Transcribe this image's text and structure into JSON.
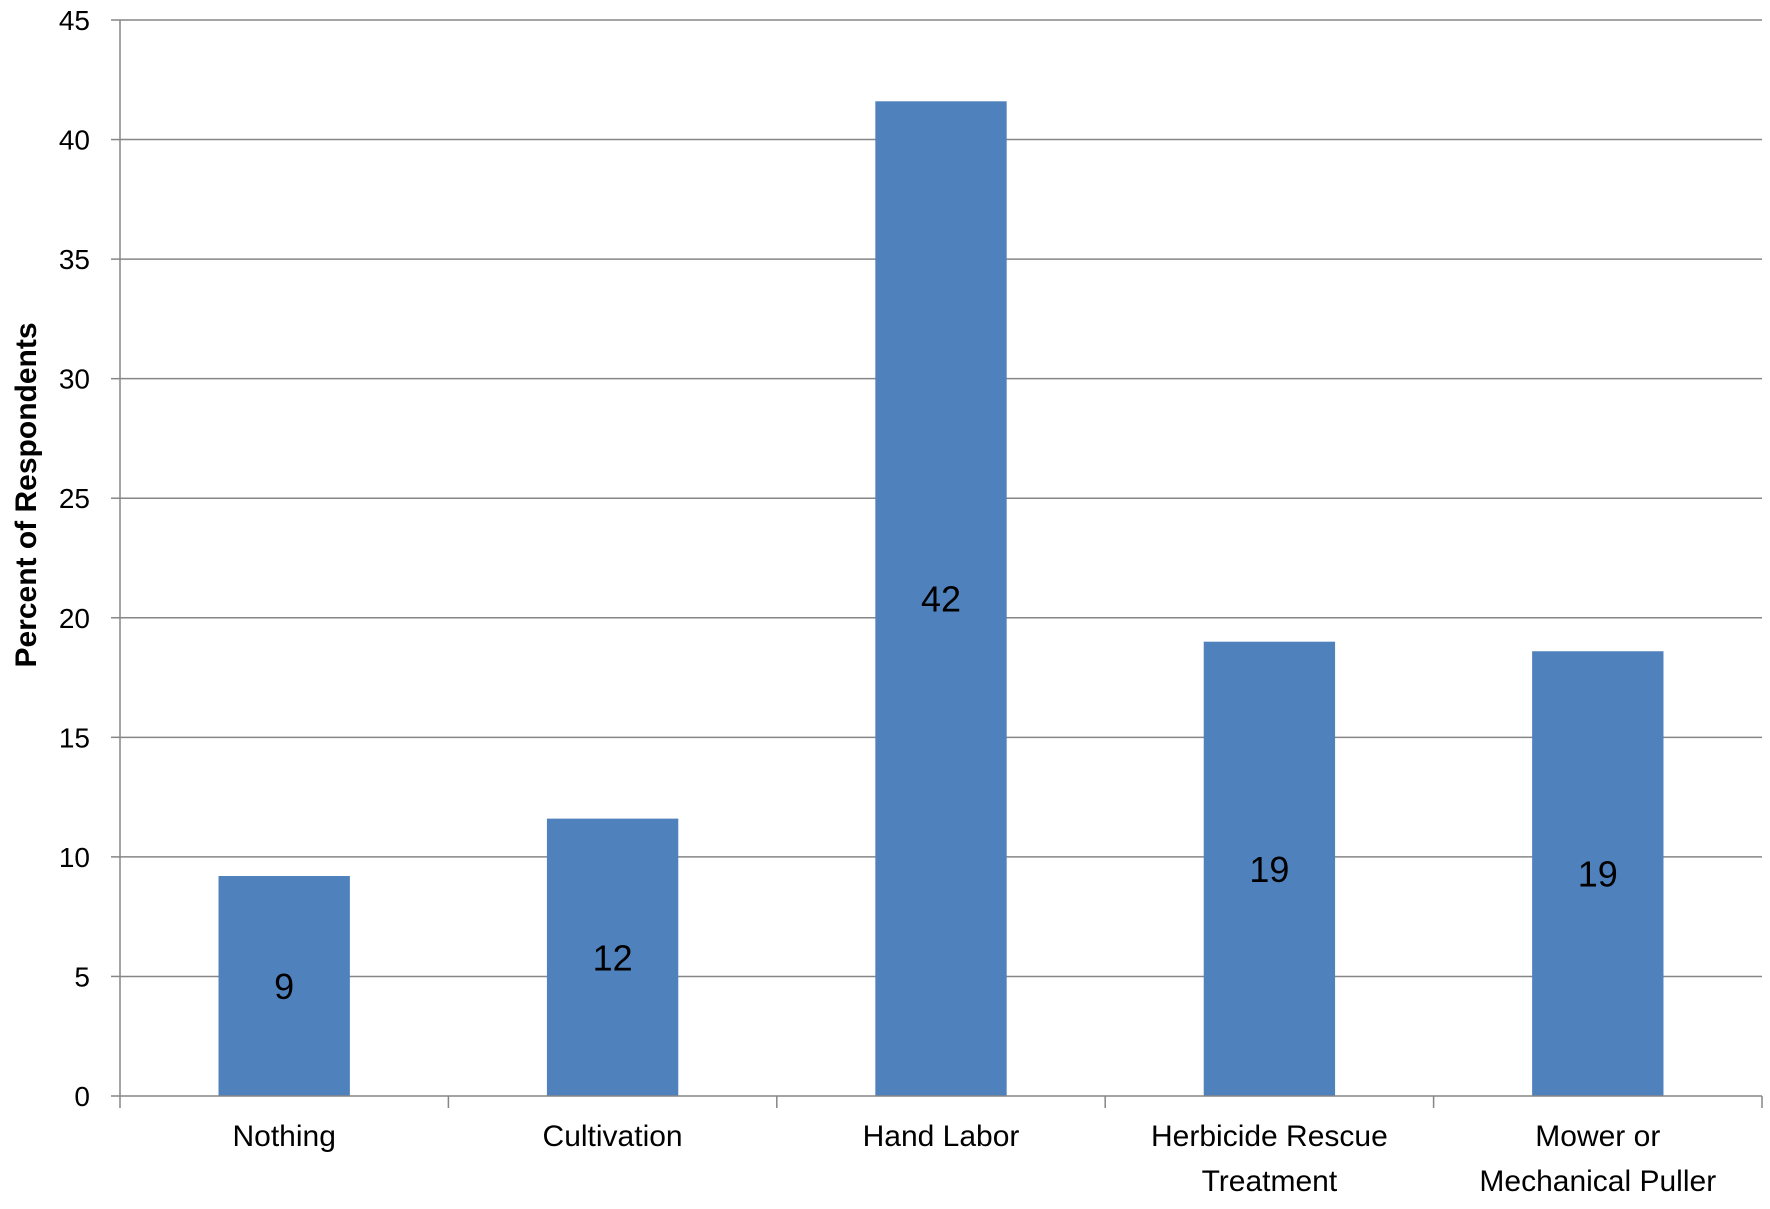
{
  "chart_data": {
    "type": "bar",
    "categories": [
      [
        "Nothing"
      ],
      [
        "Cultivation"
      ],
      [
        "Hand Labor"
      ],
      [
        "Herbicide Rescue",
        "Treatment"
      ],
      [
        "Mower or",
        "Mechanical Puller"
      ]
    ],
    "values": [
      9.2,
      11.6,
      41.6,
      19.0,
      18.6
    ],
    "data_labels": [
      "9",
      "12",
      "42",
      "19",
      "19"
    ],
    "title": "",
    "xlabel": "",
    "ylabel": "Percent of Respondents",
    "ylim": [
      0,
      45
    ],
    "yticks": [
      0,
      5,
      10,
      15,
      20,
      25,
      30,
      35,
      40,
      45
    ],
    "grid": true,
    "legend": "none",
    "colors": {
      "bar": "#4F81BD",
      "grid": "#868686",
      "axis": "#868686"
    }
  }
}
